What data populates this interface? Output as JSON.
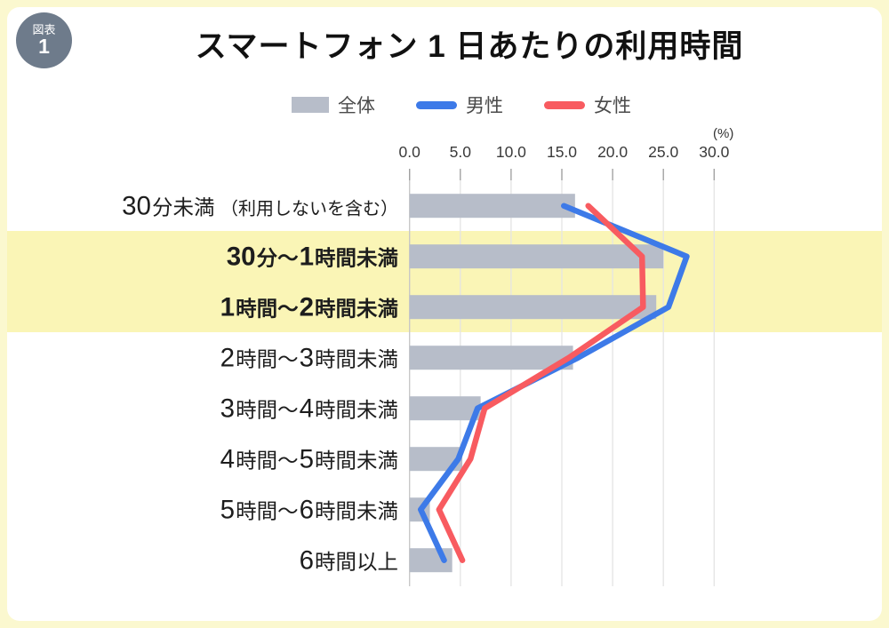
{
  "badge": {
    "top_label": "図表",
    "number": "1"
  },
  "title": "スマートフォン 1 日あたりの利用時間",
  "legend": {
    "overall_label": "全体",
    "male_label": "男性",
    "female_label": "女性"
  },
  "chart_data": {
    "type": "bar",
    "orientation": "horizontal",
    "title": "スマートフォン 1 日あたりの利用時間",
    "unit_label": "(%)",
    "xlabel": "(%)",
    "ylabel": "",
    "xlim": [
      0,
      32.5
    ],
    "grid": true,
    "legend_position": "top-center",
    "x_ticks": [
      "0.0",
      "5.0",
      "10.0",
      "15.0",
      "20.0",
      "25.0",
      "30.0"
    ],
    "categories": [
      {
        "label": "30分未満",
        "note": "（利用しないを含む）"
      },
      {
        "label": "30分～1時間未満",
        "note": ""
      },
      {
        "label": "1時間～2時間未満",
        "note": ""
      },
      {
        "label": "2時間～3時間未満",
        "note": ""
      },
      {
        "label": "3時間～4時間未満",
        "note": ""
      },
      {
        "label": "4時間～5時間未満",
        "note": ""
      },
      {
        "label": "5時間～6時間未満",
        "note": ""
      },
      {
        "label": "6時間以上",
        "note": ""
      }
    ],
    "series": [
      {
        "name": "全体",
        "type": "bar",
        "color": "#b7bdc9",
        "values": [
          16.3,
          25.0,
          24.3,
          16.1,
          7.0,
          5.2,
          2.0,
          4.2
        ]
      },
      {
        "name": "男性",
        "type": "line",
        "color": "#3d7ae8",
        "values": [
          15.2,
          27.3,
          25.5,
          16.6,
          6.7,
          4.8,
          1.1,
          3.4
        ]
      },
      {
        "name": "女性",
        "type": "line",
        "color": "#f85b60",
        "values": [
          17.6,
          22.9,
          23.0,
          15.7,
          7.4,
          6.0,
          2.9,
          5.2
        ]
      }
    ],
    "highlighted_rows": [
      1,
      2
    ],
    "highlight_color": "#faf5b6",
    "gridline_color": "#e4e4e4",
    "axis_line_color": "#c6c6c6",
    "tick_color": "#9e9e9e"
  }
}
